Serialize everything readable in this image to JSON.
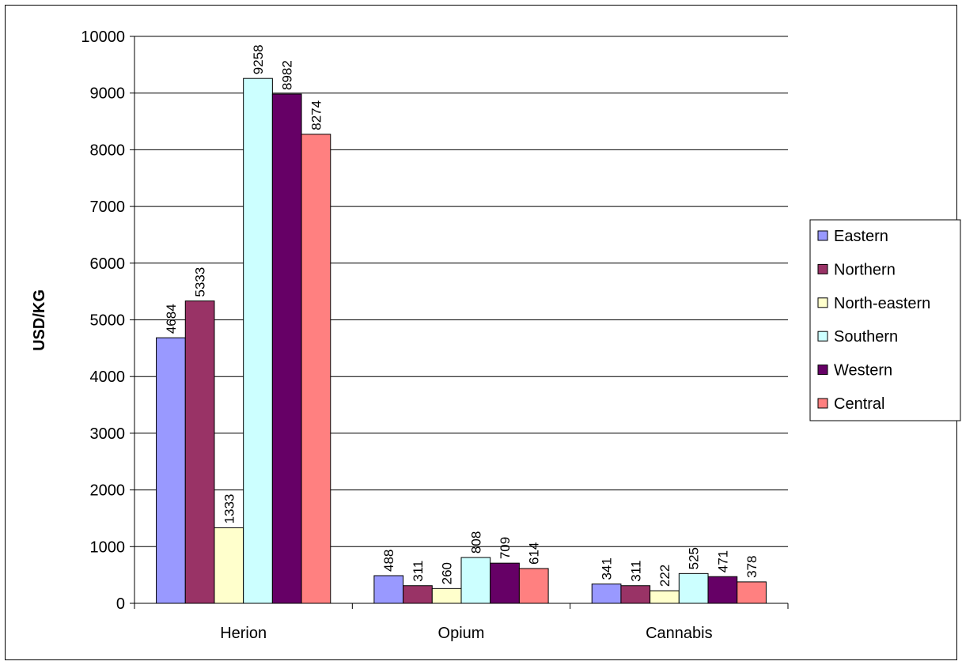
{
  "chart_data": {
    "type": "bar",
    "title": "",
    "xlabel": "",
    "ylabel": "USD/KG",
    "ylim": [
      0,
      10000
    ],
    "yticks": [
      0,
      1000,
      2000,
      3000,
      4000,
      5000,
      6000,
      7000,
      8000,
      9000,
      10000
    ],
    "grid": true,
    "legend_position": "right",
    "categories": [
      "Herion",
      "Opium",
      "Cannabis"
    ],
    "series": [
      {
        "name": "Eastern",
        "color": "#9999FF",
        "values": [
          4684,
          488,
          341
        ]
      },
      {
        "name": "Northern",
        "color": "#993366",
        "values": [
          5333,
          311,
          311
        ]
      },
      {
        "name": "North-eastern",
        "color": "#FFFFCC",
        "values": [
          1333,
          260,
          222
        ]
      },
      {
        "name": "Southern",
        "color": "#CCFFFF",
        "values": [
          9258,
          808,
          525
        ]
      },
      {
        "name": "Western",
        "color": "#660066",
        "values": [
          8982,
          709,
          471
        ]
      },
      {
        "name": "Central",
        "color": "#FF8080",
        "values": [
          8274,
          614,
          378
        ]
      }
    ]
  }
}
